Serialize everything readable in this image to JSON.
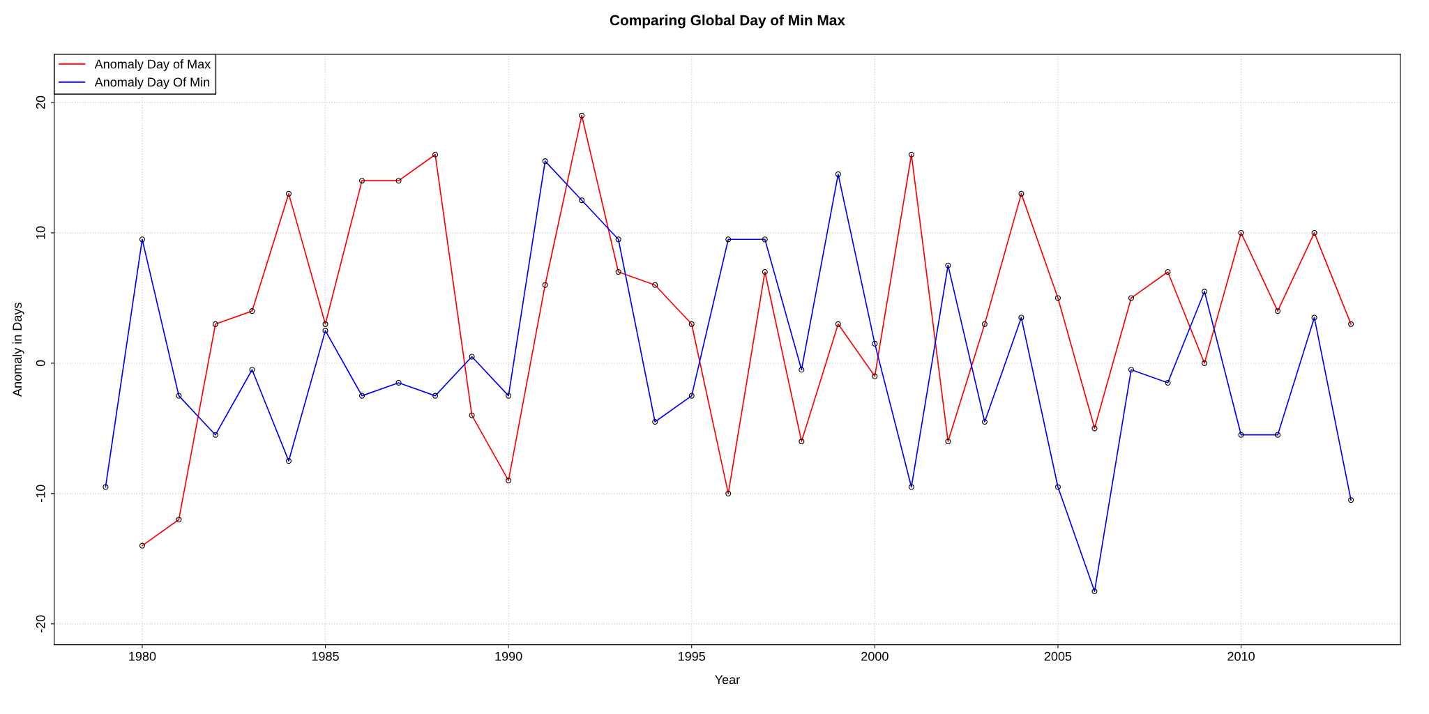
{
  "chart_data": {
    "type": "line",
    "title": "Comparing Global Day of Min Max",
    "xlabel": "Year",
    "ylabel": "Anomaly in Days",
    "x": [
      1979,
      1980,
      1981,
      1982,
      1983,
      1984,
      1985,
      1986,
      1987,
      1988,
      1989,
      1990,
      1991,
      1992,
      1993,
      1994,
      1995,
      1996,
      1997,
      1998,
      1999,
      2000,
      2001,
      2002,
      2003,
      2004,
      2005,
      2006,
      2007,
      2008,
      2009,
      2010,
      2011,
      2012,
      2013
    ],
    "series": [
      {
        "name": "Anomaly Day of Max",
        "color": "#ff0000",
        "values": [
          null,
          -14,
          -12,
          3,
          4,
          13,
          3,
          14,
          14,
          16,
          -4,
          -9,
          6,
          19,
          7,
          6,
          3,
          -10,
          7,
          -6,
          3,
          -1,
          16,
          -6,
          3,
          13,
          5,
          -5,
          5,
          7,
          0,
          10,
          4,
          10,
          3
        ]
      },
      {
        "name": "Anomaly Day Of Min",
        "color": "#0000ff",
        "values": [
          -9.5,
          9.5,
          -2.5,
          -5.5,
          -0.5,
          -7.5,
          2.5,
          -2.5,
          -1.5,
          -2.5,
          0.5,
          -2.5,
          15.5,
          12.5,
          9.5,
          -4.5,
          -2.5,
          9.5,
          9.5,
          -0.5,
          14.5,
          1.5,
          -9.5,
          7.5,
          -4.5,
          3.5,
          -9.5,
          -17.5,
          -0.5,
          -1.5,
          5.5,
          -5.5,
          -5.5,
          3.5,
          -10.5
        ]
      }
    ],
    "xlim": [
      1977.6,
      2014.35
    ],
    "ylim": [
      -21.6,
      23.7
    ],
    "xticks": [
      1980,
      1985,
      1990,
      1995,
      2000,
      2005,
      2010
    ],
    "yticks": [
      -20,
      -10,
      0,
      10,
      20
    ],
    "grid": true,
    "legend": "top left",
    "marker": "circle",
    "line_style": "solid"
  }
}
